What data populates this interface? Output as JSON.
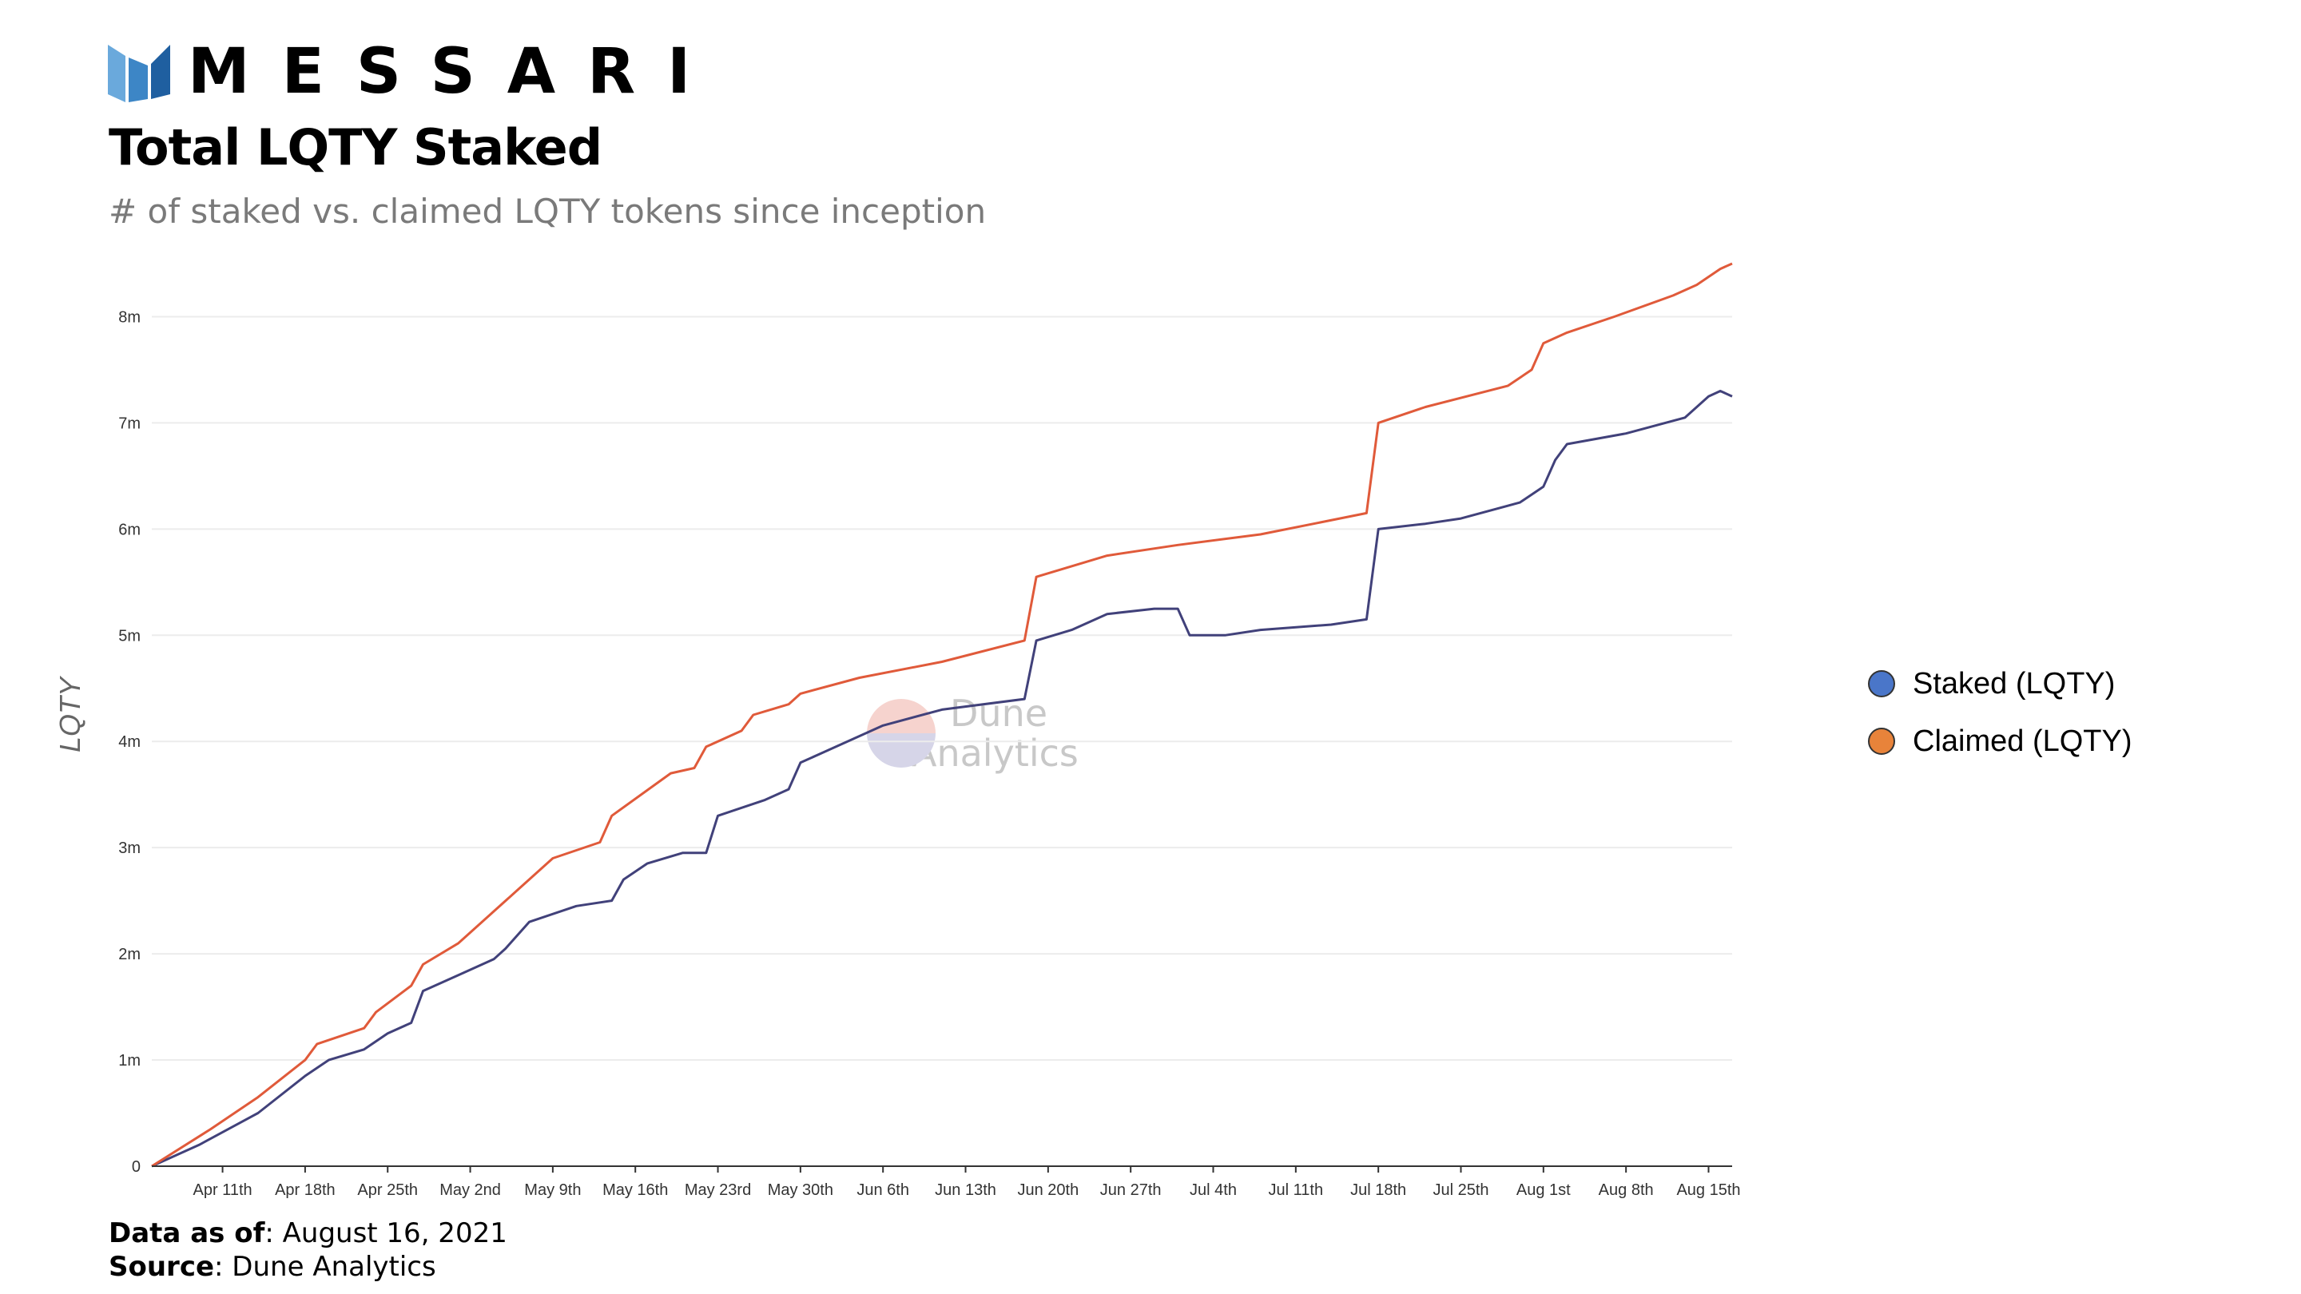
{
  "brand": {
    "wordmark": "MESSARI",
    "logo_colors": [
      "#6aa9dc",
      "#3d86c6",
      "#1f5fa0"
    ]
  },
  "title": "Total LQTY Staked",
  "subtitle": "# of staked vs. claimed LQTY tokens since inception",
  "footer": {
    "data_as_of_label": "Data as of",
    "data_as_of_value": ": August 16, 2021",
    "source_label": "Source",
    "source_value": ": Dune Analytics"
  },
  "watermark": {
    "line1": "Dune",
    "line2": "Analytics"
  },
  "chart_data": {
    "type": "line",
    "title": "Total LQTY Staked",
    "xlabel": "",
    "ylabel": "LQTY",
    "x_start": "2021-04-05",
    "x_end": "2021-08-17",
    "xlim": [
      "2021-04-05",
      "2021-08-17"
    ],
    "ylim": [
      0,
      8500000
    ],
    "yticks": [
      0,
      1000000,
      2000000,
      3000000,
      4000000,
      5000000,
      6000000,
      7000000,
      8000000
    ],
    "ytick_labels": [
      "0",
      "1m",
      "2m",
      "3m",
      "4m",
      "5m",
      "6m",
      "7m",
      "8m"
    ],
    "xticks": [
      "2021-04-11",
      "2021-04-18",
      "2021-04-25",
      "2021-05-02",
      "2021-05-09",
      "2021-05-16",
      "2021-05-23",
      "2021-05-30",
      "2021-06-06",
      "2021-06-13",
      "2021-06-20",
      "2021-06-27",
      "2021-07-04",
      "2021-07-11",
      "2021-07-18",
      "2021-07-25",
      "2021-08-01",
      "2021-08-08",
      "2021-08-15"
    ],
    "xtick_labels": [
      "Apr 11th",
      "Apr 18th",
      "Apr 25th",
      "May 2nd",
      "May 9th",
      "May 16th",
      "May 23rd",
      "May 30th",
      "Jun 6th",
      "Jun 13th",
      "Jun 20th",
      "Jun 27th",
      "Jul 4th",
      "Jul 11th",
      "Jul 18th",
      "Jul 25th",
      "Aug 1st",
      "Aug 8th",
      "Aug 15th"
    ],
    "grid": "horizontal",
    "legend_position": "right",
    "series": [
      {
        "name": "Staked (LQTY)",
        "line_color": "#41417a",
        "legend_color": "#4a76c9",
        "points": [
          [
            "2021-04-05",
            0
          ],
          [
            "2021-04-09",
            200000
          ],
          [
            "2021-04-14",
            500000
          ],
          [
            "2021-04-18",
            850000
          ],
          [
            "2021-04-20",
            1000000
          ],
          [
            "2021-04-23",
            1100000
          ],
          [
            "2021-04-25",
            1250000
          ],
          [
            "2021-04-27",
            1350000
          ],
          [
            "2021-04-28",
            1650000
          ],
          [
            "2021-05-01",
            1800000
          ],
          [
            "2021-05-04",
            1950000
          ],
          [
            "2021-05-05",
            2050000
          ],
          [
            "2021-05-07",
            2300000
          ],
          [
            "2021-05-11",
            2450000
          ],
          [
            "2021-05-14",
            2500000
          ],
          [
            "2021-05-15",
            2700000
          ],
          [
            "2021-05-17",
            2850000
          ],
          [
            "2021-05-20",
            2950000
          ],
          [
            "2021-05-22",
            2950000
          ],
          [
            "2021-05-23",
            3300000
          ],
          [
            "2021-05-27",
            3450000
          ],
          [
            "2021-05-29",
            3550000
          ],
          [
            "2021-05-30",
            3800000
          ],
          [
            "2021-06-01",
            3900000
          ],
          [
            "2021-06-06",
            4150000
          ],
          [
            "2021-06-11",
            4300000
          ],
          [
            "2021-06-18",
            4400000
          ],
          [
            "2021-06-19",
            4950000
          ],
          [
            "2021-06-22",
            5050000
          ],
          [
            "2021-06-25",
            5200000
          ],
          [
            "2021-06-29",
            5250000
          ],
          [
            "2021-07-01",
            5250000
          ],
          [
            "2021-07-02",
            5000000
          ],
          [
            "2021-07-05",
            5000000
          ],
          [
            "2021-07-08",
            5050000
          ],
          [
            "2021-07-14",
            5100000
          ],
          [
            "2021-07-17",
            5150000
          ],
          [
            "2021-07-18",
            6000000
          ],
          [
            "2021-07-22",
            6050000
          ],
          [
            "2021-07-25",
            6100000
          ],
          [
            "2021-07-30",
            6250000
          ],
          [
            "2021-08-01",
            6400000
          ],
          [
            "2021-08-02",
            6650000
          ],
          [
            "2021-08-03",
            6800000
          ],
          [
            "2021-08-08",
            6900000
          ],
          [
            "2021-08-13",
            7050000
          ],
          [
            "2021-08-15",
            7250000
          ],
          [
            "2021-08-16",
            7300000
          ],
          [
            "2021-08-17",
            7250000
          ]
        ]
      },
      {
        "name": "Claimed (LQTY)",
        "line_color": "#e05a3a",
        "legend_color": "#e8833a",
        "points": [
          [
            "2021-04-05",
            0
          ],
          [
            "2021-04-10",
            350000
          ],
          [
            "2021-04-14",
            650000
          ],
          [
            "2021-04-18",
            1000000
          ],
          [
            "2021-04-19",
            1150000
          ],
          [
            "2021-04-23",
            1300000
          ],
          [
            "2021-04-24",
            1450000
          ],
          [
            "2021-04-27",
            1700000
          ],
          [
            "2021-04-28",
            1900000
          ],
          [
            "2021-05-01",
            2100000
          ],
          [
            "2021-05-04",
            2400000
          ],
          [
            "2021-05-06",
            2600000
          ],
          [
            "2021-05-09",
            2900000
          ],
          [
            "2021-05-13",
            3050000
          ],
          [
            "2021-05-14",
            3300000
          ],
          [
            "2021-05-19",
            3700000
          ],
          [
            "2021-05-21",
            3750000
          ],
          [
            "2021-05-22",
            3950000
          ],
          [
            "2021-05-25",
            4100000
          ],
          [
            "2021-05-26",
            4250000
          ],
          [
            "2021-05-29",
            4350000
          ],
          [
            "2021-05-30",
            4450000
          ],
          [
            "2021-06-04",
            4600000
          ],
          [
            "2021-06-11",
            4750000
          ],
          [
            "2021-06-18",
            4950000
          ],
          [
            "2021-06-19",
            5550000
          ],
          [
            "2021-06-25",
            5750000
          ],
          [
            "2021-07-01",
            5850000
          ],
          [
            "2021-07-08",
            5950000
          ],
          [
            "2021-07-17",
            6150000
          ],
          [
            "2021-07-18",
            7000000
          ],
          [
            "2021-07-22",
            7150000
          ],
          [
            "2021-07-29",
            7350000
          ],
          [
            "2021-07-31",
            7500000
          ],
          [
            "2021-08-01",
            7750000
          ],
          [
            "2021-08-03",
            7850000
          ],
          [
            "2021-08-07",
            8000000
          ],
          [
            "2021-08-12",
            8200000
          ],
          [
            "2021-08-14",
            8300000
          ],
          [
            "2021-08-16",
            8450000
          ],
          [
            "2021-08-17",
            8500000
          ]
        ]
      }
    ]
  }
}
